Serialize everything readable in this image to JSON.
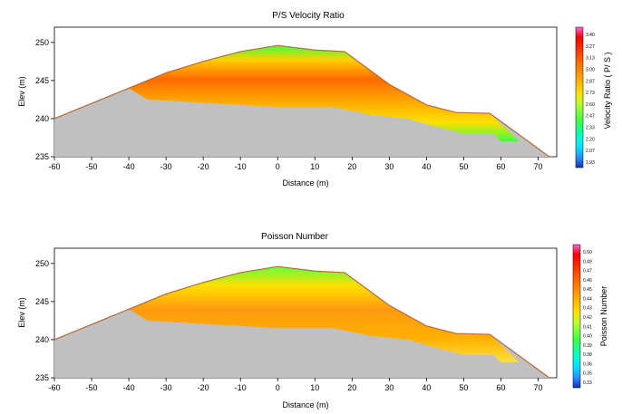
{
  "chart_data": [
    {
      "type": "heatmap",
      "title": "P/S Velocity Ratio",
      "xlabel": "Distance (m)",
      "ylabel": "Elev (m)",
      "colorbar_label": "Velocity Ratio ( P/ S )",
      "xlim": [
        -60,
        75
      ],
      "ylim": [
        235,
        252
      ],
      "x_ticks": [
        -60,
        -50,
        -40,
        -30,
        -20,
        -10,
        0,
        10,
        20,
        30,
        40,
        50,
        60,
        70
      ],
      "y_ticks": [
        235,
        240,
        245,
        250
      ],
      "colorbar_ticks": [
        "3.40",
        "3.27",
        "3.13",
        "3.00",
        "2.87",
        "2.73",
        "2.60",
        "2.47",
        "2.33",
        "2.20",
        "2.07",
        "1.93"
      ],
      "ground_surface": {
        "x": [
          -60,
          -40,
          -30,
          -20,
          -10,
          0,
          10,
          18,
          30,
          40,
          48,
          57,
          73
        ],
        "y": [
          240,
          244,
          246,
          247.5,
          248.8,
          249.6,
          249.0,
          248.8,
          244.5,
          241.8,
          240.8,
          240.7,
          235
        ]
      },
      "model_top": {
        "x": [
          -40,
          -30,
          -20,
          -10,
          0,
          10,
          18,
          30,
          40,
          48,
          57,
          65
        ],
        "y": [
          244,
          246,
          247.5,
          248.8,
          249.6,
          249.0,
          248.8,
          244.5,
          241.8,
          240.8,
          240.7,
          237
        ]
      },
      "model_bottom": {
        "x": [
          65,
          60,
          58,
          55,
          50,
          42,
          35,
          25,
          15,
          0,
          -35,
          -40
        ],
        "y": [
          237,
          237,
          238,
          238,
          238,
          239,
          240,
          240.5,
          241.5,
          241.5,
          242.5,
          244
        ]
      },
      "value_range": [
        1.93,
        3.4
      ]
    },
    {
      "type": "heatmap",
      "title": "Poisson Number",
      "xlabel": "Distance (m)",
      "ylabel": "Elev (m)",
      "colorbar_label": "Poisson Number",
      "xlim": [
        -60,
        75
      ],
      "ylim": [
        235,
        252
      ],
      "x_ticks": [
        -60,
        -50,
        -40,
        -30,
        -20,
        -10,
        0,
        10,
        20,
        30,
        40,
        50,
        60,
        70
      ],
      "y_ticks": [
        235,
        240,
        245,
        250
      ],
      "colorbar_ticks": [
        "0.50",
        "0.49",
        "0.47",
        "0.46",
        "0.45",
        "0.44",
        "0.43",
        "0.42",
        "0.41",
        "0.40",
        "0.39",
        "0.38",
        "0.36",
        "0.35",
        "0.33"
      ],
      "ground_surface": {
        "x": [
          -60,
          -40,
          -30,
          -20,
          -10,
          0,
          10,
          18,
          30,
          40,
          48,
          57,
          73
        ],
        "y": [
          240,
          244,
          246,
          247.5,
          248.8,
          249.6,
          249.0,
          248.8,
          244.5,
          241.8,
          240.8,
          240.7,
          235
        ]
      },
      "model_top": {
        "x": [
          -40,
          -30,
          -20,
          -10,
          0,
          10,
          18,
          30,
          40,
          48,
          57,
          65
        ],
        "y": [
          244,
          246,
          247.5,
          248.8,
          249.6,
          249.0,
          248.8,
          244.5,
          241.8,
          240.8,
          240.7,
          237
        ]
      },
      "model_bottom": {
        "x": [
          65,
          60,
          58,
          55,
          50,
          42,
          35,
          25,
          15,
          0,
          -35,
          -40
        ],
        "y": [
          237,
          237,
          238,
          238,
          238,
          239,
          240,
          240.5,
          241.5,
          241.5,
          242.5,
          244
        ]
      },
      "value_range": [
        0.33,
        0.5
      ]
    }
  ],
  "colors": {
    "ground_fill": "#c0c0c0",
    "surface_line": "#b36a3c",
    "colorbar": [
      "#ff66dd",
      "#ff0000",
      "#ff6a00",
      "#ffb000",
      "#ffe000",
      "#b4ff30",
      "#40ff40",
      "#00ffcc",
      "#00ddff",
      "#2a8cff",
      "#1030c0"
    ]
  }
}
